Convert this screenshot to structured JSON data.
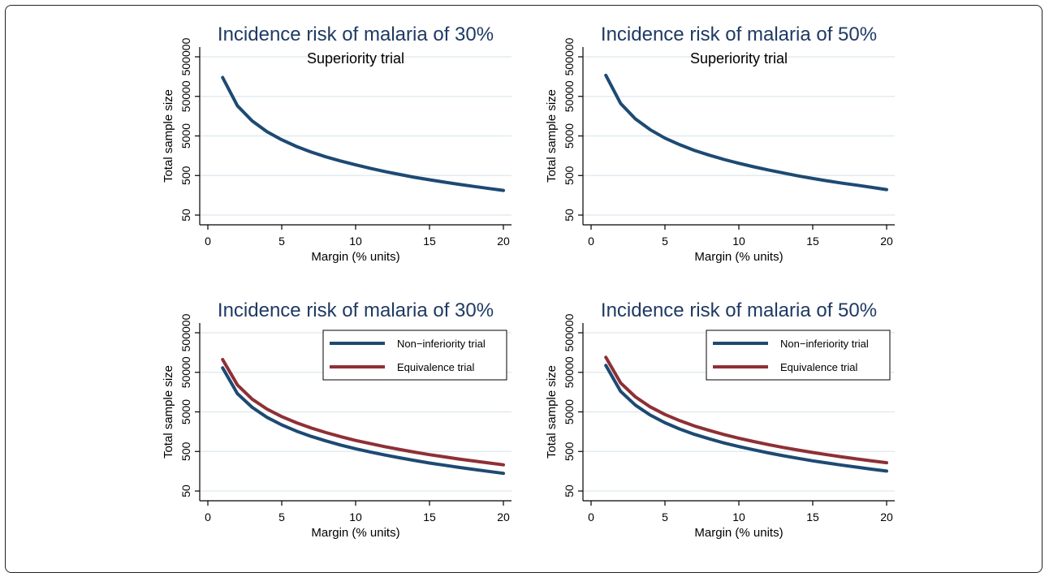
{
  "colors": {
    "title": "#1f3a63",
    "non_inferiority": "#1d4a73",
    "equivalence": "#8e3036",
    "grid": "#dde8ee",
    "axis": "#000000"
  },
  "chart_data": [
    {
      "type": "line",
      "title": "Incidence risk of malaria of 30%",
      "subtitle": "Superiority trial",
      "xlabel": "Margin (% units)",
      "ylabel": "Total sample size",
      "xlim": [
        0,
        20
      ],
      "ylim": [
        50,
        500000
      ],
      "yscale": "log",
      "grid": true,
      "legend": null,
      "xticks": [
        "0",
        "5",
        "10",
        "15",
        "20"
      ],
      "yticks": [
        "50",
        "500",
        "5000",
        "50000",
        "500000"
      ],
      "series": [
        {
          "key": "non_inferiority",
          "x": [
            1,
            2,
            3,
            4,
            5,
            6,
            7,
            8,
            9,
            10,
            11,
            12,
            13,
            14,
            15,
            16,
            17,
            18,
            19,
            20
          ],
          "values": [
            150000,
            29000,
            12000,
            6400,
            4000,
            2700,
            1950,
            1480,
            1160,
            930,
            760,
            630,
            530,
            450,
            390,
            340,
            300,
            265,
            235,
            210
          ]
        }
      ]
    },
    {
      "type": "line",
      "title": "Incidence risk of malaria of 50%",
      "subtitle": "Superiority trial",
      "xlabel": "Margin (% units)",
      "ylabel": "Total sample size",
      "xlim": [
        0,
        20
      ],
      "ylim": [
        50,
        500000
      ],
      "yscale": "log",
      "grid": true,
      "legend": null,
      "xticks": [
        "0",
        "5",
        "10",
        "15",
        "20"
      ],
      "yticks": [
        "50",
        "500",
        "5000",
        "50000",
        "500000"
      ],
      "series": [
        {
          "key": "non_inferiority",
          "x": [
            1,
            2,
            3,
            4,
            5,
            6,
            7,
            8,
            9,
            10,
            11,
            12,
            13,
            14,
            15,
            16,
            17,
            18,
            19,
            20
          ],
          "values": [
            170000,
            33000,
            13500,
            7200,
            4400,
            3000,
            2150,
            1630,
            1270,
            1020,
            830,
            690,
            580,
            490,
            420,
            365,
            320,
            285,
            250,
            220
          ]
        }
      ]
    },
    {
      "type": "line",
      "title": "Incidence risk of malaria of 30%",
      "subtitle": "",
      "xlabel": "Margin (% units)",
      "ylabel": "Total sample size",
      "xlim": [
        0,
        20
      ],
      "ylim": [
        50,
        500000
      ],
      "yscale": "log",
      "grid": true,
      "legend": "top-right",
      "xticks": [
        "0",
        "5",
        "10",
        "15",
        "20"
      ],
      "yticks": [
        "50",
        "500",
        "5000",
        "50000",
        "500000"
      ],
      "series": [
        {
          "key": "non_inferiority",
          "name": "Non−inferiority trial",
          "x": [
            1,
            2,
            3,
            4,
            5,
            6,
            7,
            8,
            9,
            10,
            11,
            12,
            13,
            14,
            15,
            16,
            17,
            18,
            19,
            20
          ],
          "values": [
            65000,
            14500,
            6500,
            3650,
            2350,
            1630,
            1200,
            920,
            725,
            585,
            485,
            405,
            345,
            295,
            255,
            225,
            198,
            176,
            157,
            140
          ]
        },
        {
          "key": "equivalence",
          "name": "Equivalence trial",
          "x": [
            1,
            2,
            3,
            4,
            5,
            6,
            7,
            8,
            9,
            10,
            11,
            12,
            13,
            14,
            15,
            16,
            17,
            18,
            19,
            20
          ],
          "values": [
            105000,
            24000,
            10500,
            5900,
            3800,
            2650,
            1950,
            1500,
            1180,
            950,
            790,
            660,
            560,
            480,
            415,
            365,
            322,
            287,
            256,
            230
          ]
        }
      ]
    },
    {
      "type": "line",
      "title": "Incidence risk of malaria of 50%",
      "subtitle": "",
      "xlabel": "Margin (% units)",
      "ylabel": "Total sample size",
      "xlim": [
        0,
        20
      ],
      "ylim": [
        50,
        500000
      ],
      "yscale": "log",
      "grid": true,
      "legend": "top-right",
      "xticks": [
        "0",
        "5",
        "10",
        "15",
        "20"
      ],
      "yticks": [
        "50",
        "500",
        "5000",
        "50000",
        "500000"
      ],
      "series": [
        {
          "key": "non_inferiority",
          "name": "Non−inferiority trial",
          "x": [
            1,
            2,
            3,
            4,
            5,
            6,
            7,
            8,
            9,
            10,
            11,
            12,
            13,
            14,
            15,
            16,
            17,
            18,
            19,
            20
          ],
          "values": [
            75000,
            16500,
            7400,
            4150,
            2650,
            1850,
            1350,
            1040,
            820,
            665,
            550,
            460,
            390,
            335,
            290,
            255,
            225,
            200,
            178,
            160
          ]
        },
        {
          "key": "equivalence",
          "name": "Equivalence trial",
          "x": [
            1,
            2,
            3,
            4,
            5,
            6,
            7,
            8,
            9,
            10,
            11,
            12,
            13,
            14,
            15,
            16,
            17,
            18,
            19,
            20
          ],
          "values": [
            120000,
            27000,
            12000,
            6700,
            4300,
            3000,
            2200,
            1700,
            1340,
            1080,
            890,
            745,
            632,
            543,
            471,
            412,
            363,
            323,
            289,
            260
          ]
        }
      ]
    }
  ]
}
